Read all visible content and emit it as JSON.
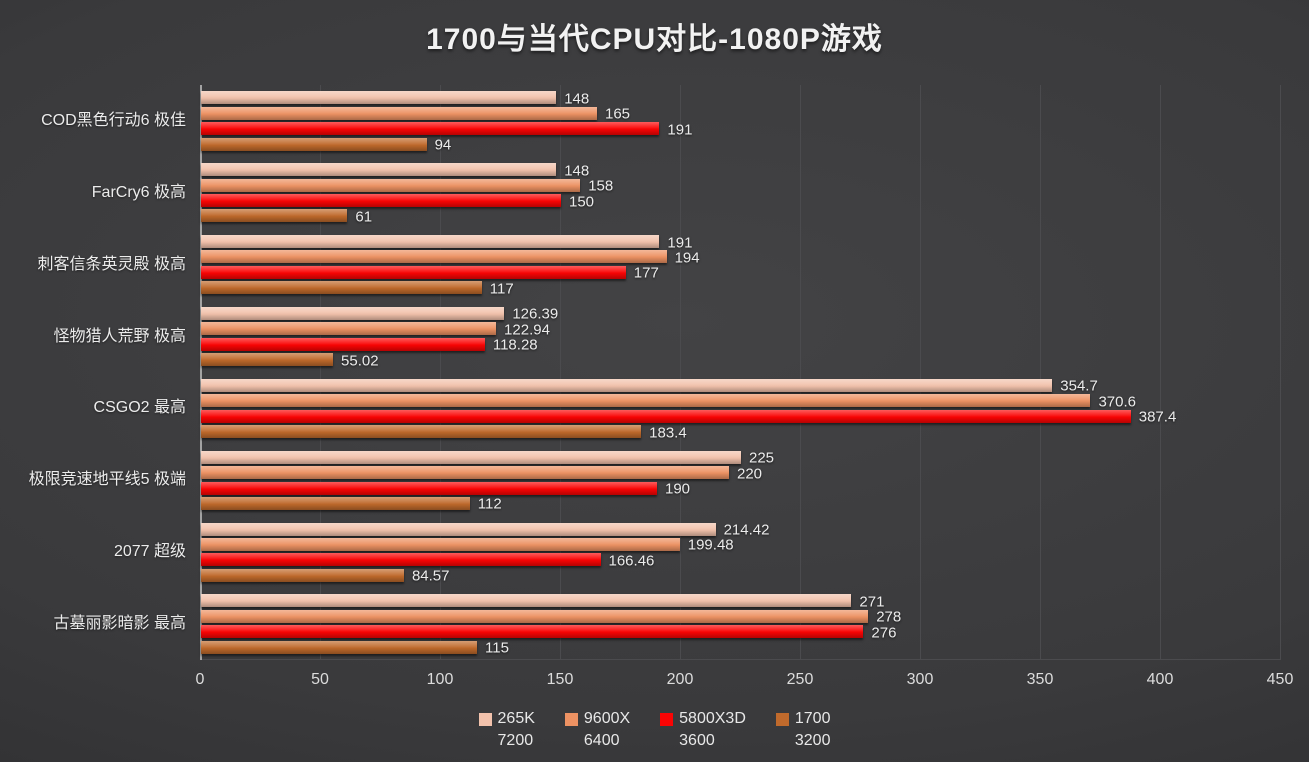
{
  "chart_data": {
    "type": "bar",
    "orientation": "horizontal",
    "title": "1700与当代CPU对比-1080P游戏",
    "categories": [
      "COD黑色行动6 极佳",
      "FarCry6 极高",
      "刺客信条英灵殿 极高",
      "怪物猎人荒野 极高",
      "CSGO2 最高",
      "极限竞速地平线5 极端",
      "2077 超级",
      "古墓丽影暗影 最高"
    ],
    "series": [
      {
        "name": "265K",
        "sub": "7200",
        "color": "#F2C2AC",
        "values": [
          148,
          148,
          191,
          126.39,
          354.7,
          225,
          214.42,
          271
        ]
      },
      {
        "name": "9600X",
        "sub": "6400",
        "color": "#ED9263",
        "values": [
          165,
          158,
          194,
          122.94,
          370.6,
          220,
          199.48,
          278
        ]
      },
      {
        "name": "5800X3D",
        "sub": "3600",
        "color": "#FB0404",
        "values": [
          191,
          150,
          177,
          118.28,
          387.4,
          190,
          166.46,
          276
        ]
      },
      {
        "name": "1700",
        "sub": "3200",
        "color": "#C06A2C",
        "values": [
          94,
          61,
          117,
          55.02,
          183.4,
          112,
          84.57,
          115
        ]
      }
    ],
    "x_axis": {
      "min": 0,
      "max": 450,
      "step": 50,
      "tick_labels": [
        "0",
        "50",
        "100",
        "150",
        "200",
        "250",
        "300",
        "350",
        "400",
        "450"
      ]
    },
    "legend_position": "bottom",
    "grid": true
  },
  "colors": {
    "background_center": "#434345",
    "background_edge": "#2a2a2c",
    "gridline": "#4b4b4e",
    "axis_line": "#a3a3a3",
    "text": "#ececec"
  }
}
